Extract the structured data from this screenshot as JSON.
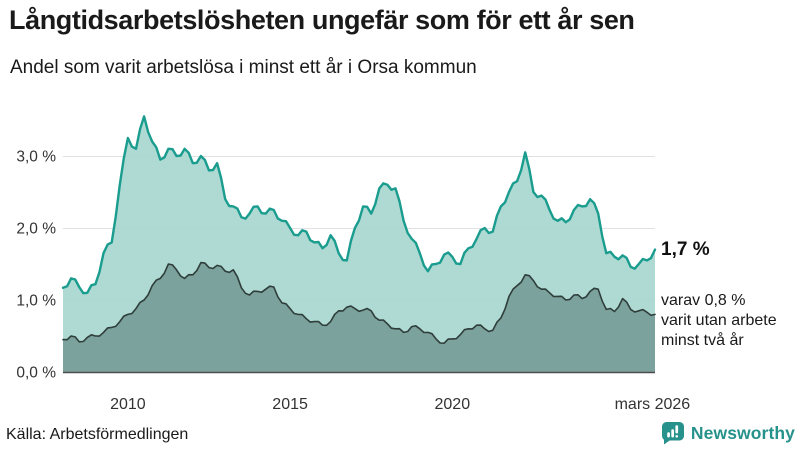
{
  "header": {
    "title": "Långtidsarbetslösheten ungefär som för ett år sen",
    "subtitle": "Andel som varit arbetslösa i minst ett år i Orsa kommun"
  },
  "chart_data": {
    "type": "area",
    "title": "Andel som varit arbetslösa i minst ett år i Orsa kommun",
    "x_unit": "år (decimal, kvartalsvis)",
    "y_unit": "procent",
    "xlim": [
      2008,
      2026.25
    ],
    "ylim": [
      0,
      3.6
    ],
    "grid": "horizontal",
    "legend": "none",
    "x": [
      2008,
      2008.25,
      2008.5,
      2008.75,
      2009,
      2009.25,
      2009.5,
      2009.75,
      2010,
      2010.25,
      2010.5,
      2010.75,
      2011,
      2011.25,
      2011.5,
      2011.75,
      2012,
      2012.25,
      2012.5,
      2012.75,
      2013,
      2013.25,
      2013.5,
      2013.75,
      2014,
      2014.25,
      2014.5,
      2014.75,
      2015,
      2015.25,
      2015.5,
      2015.75,
      2016,
      2016.25,
      2016.5,
      2016.75,
      2017,
      2017.25,
      2017.5,
      2017.75,
      2018,
      2018.25,
      2018.5,
      2018.75,
      2019,
      2019.25,
      2019.5,
      2019.75,
      2020,
      2020.25,
      2020.5,
      2020.75,
      2021,
      2021.25,
      2021.5,
      2021.75,
      2022,
      2022.25,
      2022.5,
      2022.75,
      2023,
      2023.25,
      2023.5,
      2023.75,
      2024,
      2024.25,
      2024.5,
      2024.75,
      2025,
      2025.25,
      2025.5,
      2025.75,
      2026,
      2026.25
    ],
    "series": [
      {
        "name": "Andel arbetslösa i minst ett år",
        "color": "#1a9c8e",
        "fill": "#a8d7cf",
        "stroke_width": 2.4,
        "jag": 1.0,
        "last_value": "1,7 %",
        "values": [
          1.17,
          1.3,
          1.18,
          1.1,
          1.22,
          1.65,
          1.8,
          2.6,
          3.25,
          3.1,
          3.55,
          3.2,
          2.95,
          3.1,
          3.0,
          3.1,
          2.9,
          3.0,
          2.8,
          2.9,
          2.4,
          2.3,
          2.15,
          2.2,
          2.3,
          2.2,
          2.25,
          2.1,
          2.0,
          1.9,
          1.95,
          1.8,
          1.72,
          1.9,
          1.65,
          1.55,
          2.0,
          2.3,
          2.2,
          2.55,
          2.6,
          2.55,
          2.1,
          1.85,
          1.65,
          1.4,
          1.5,
          1.63,
          1.6,
          1.5,
          1.72,
          1.85,
          2.0,
          1.95,
          2.3,
          2.5,
          2.65,
          3.05,
          2.5,
          2.45,
          2.25,
          2.1,
          2.08,
          2.25,
          2.3,
          2.4,
          2.2,
          1.65,
          1.6,
          1.62,
          1.46,
          1.5,
          1.55,
          1.7
        ]
      },
      {
        "name": "Varav utan arbete i minst två år",
        "color": "#2f3e3b",
        "fill": "#769d97",
        "stroke_width": 1.6,
        "jag": 0.6,
        "last_value": "0,8 %",
        "values": [
          0.45,
          0.5,
          0.42,
          0.48,
          0.5,
          0.55,
          0.62,
          0.7,
          0.8,
          0.88,
          1.0,
          1.2,
          1.3,
          1.5,
          1.42,
          1.3,
          1.35,
          1.52,
          1.45,
          1.48,
          1.4,
          1.42,
          1.17,
          1.07,
          1.12,
          1.15,
          1.18,
          0.96,
          0.88,
          0.8,
          0.74,
          0.7,
          0.65,
          0.7,
          0.85,
          0.9,
          0.88,
          0.86,
          0.85,
          0.72,
          0.67,
          0.6,
          0.55,
          0.63,
          0.6,
          0.55,
          0.46,
          0.4,
          0.46,
          0.52,
          0.6,
          0.65,
          0.6,
          0.58,
          0.75,
          1.05,
          1.2,
          1.35,
          1.27,
          1.15,
          1.1,
          1.05,
          1.0,
          1.07,
          1.02,
          1.12,
          1.15,
          0.87,
          0.84,
          1.02,
          0.87,
          0.85,
          0.83,
          0.8
        ]
      }
    ],
    "yticks": [
      {
        "value": 0,
        "label": "0,0 %"
      },
      {
        "value": 1,
        "label": "1,0 %"
      },
      {
        "value": 2,
        "label": "2,0 %"
      },
      {
        "value": 3,
        "label": "3,0 %"
      }
    ],
    "xticks": [
      {
        "value": 2010,
        "label": "2010"
      },
      {
        "value": 2015,
        "label": "2015"
      },
      {
        "value": 2020,
        "label": "2020"
      },
      {
        "value": 2026.17,
        "label": "mars 2026"
      }
    ],
    "annotations": {
      "total_label": "1,7 %",
      "two_year_label": "varav 0,8 %\nvarit utan arbete\nminst två år"
    }
  },
  "footer": {
    "source": "Källa: Arbetsförmedlingen",
    "brand": "Newsworthy"
  },
  "colors": {
    "background": "#ffffff",
    "text": "#1a1a1a",
    "grid": "#e1e1e1",
    "axis_line": "#4d4d4d",
    "tick_text": "#333333",
    "brand": "#27928b"
  }
}
